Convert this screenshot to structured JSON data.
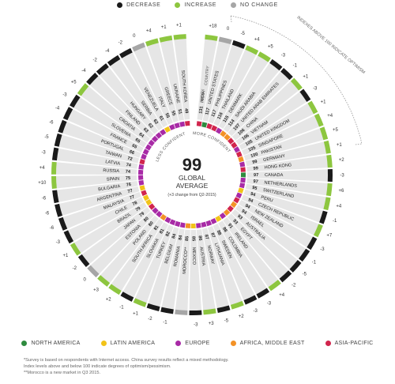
{
  "legend_top": [
    {
      "label": "DECREASE",
      "color": "#1a1a1a"
    },
    {
      "label": "INCREASE",
      "color": "#8dc63f"
    },
    {
      "label": "NO CHANGE",
      "color": "#a6a6a6"
    }
  ],
  "legend_bottom": [
    {
      "label": "NORTH AMERICA",
      "color": "#2e8b3e"
    },
    {
      "label": "LATIN AMERICA",
      "color": "#f2c318"
    },
    {
      "label": "EUROPE",
      "color": "#a82aa6"
    },
    {
      "label": "AFRICA, MIDDLE EAST",
      "color": "#f39226"
    },
    {
      "label": "ASIA-PACIFIC",
      "color": "#d1254d"
    }
  ],
  "center": {
    "value": "99",
    "label1": "GLOBAL",
    "label2": "AVERAGE",
    "note": "(+3 change from Q2-2015)"
  },
  "arc_labels": {
    "more": "MORE CONFIDENT",
    "less": "LESS CONFIDENT",
    "optimism": "INDEXES ABOVE 100 INDICATE OPTIMISM",
    "index_header": "INDEX",
    "country_header": "COUNTRY"
  },
  "footnotes": [
    "*Survey is based on respondents with Internet access. China survey results reflect a mixed methodology.",
    "Index levels above and below 100 indicate degrees of optimism/pessimism.",
    "**Morocco is a new market in Q3 2015."
  ],
  "chart_data": {
    "type": "radial-bar",
    "title": "",
    "global_average": 99,
    "global_change": "+3",
    "categories": [
      "India",
      "United States",
      "Philippines",
      "Thailand",
      "Denmark",
      "Saudi Arabia",
      "United Arab Emirates",
      "China",
      "Vietnam",
      "United Kingdom",
      "Singapore",
      "Pakistan",
      "Germany",
      "Hong Kong",
      "Canada",
      "Netherlands",
      "Switzerland",
      "Peru",
      "Czech Republic",
      "New Zealand",
      "Israel",
      "Australia",
      "Egypt",
      "Ireland",
      "Colombia",
      "Sweden",
      "Lithuania",
      "Norway",
      "Austria",
      "Mexico",
      "Morocco**",
      "Romania",
      "Belgium",
      "Turkey",
      "Slovakia",
      "South Africa",
      "Poland",
      "Estonia",
      "Japan",
      "Brazil",
      "Chile",
      "Malaysia",
      "Argentina",
      "Bulgaria",
      "Spain",
      "Russia",
      "Latvia",
      "Taiwan",
      "Portugal",
      "France",
      "Slovenia",
      "Croatia",
      "Finland",
      "Hungary",
      "Serbia",
      "Venezuela",
      "Italy",
      "Greece",
      "Ukraine",
      "South Korea"
    ],
    "index": [
      131,
      117,
      117,
      116,
      115,
      114,
      107,
      106,
      106,
      105,
      105,
      100,
      99,
      99,
      97,
      97,
      95,
      94,
      94,
      94,
      94,
      93,
      93,
      91,
      88,
      88,
      87,
      87,
      86,
      85,
      85,
      84,
      84,
      82,
      81,
      81,
      80,
      80,
      79,
      79,
      78,
      77,
      77,
      76,
      75,
      74,
      74,
      72,
      66,
      65,
      65,
      64,
      63,
      62,
      62,
      61,
      55,
      55,
      51,
      49
    ],
    "change": [
      "+18",
      "0",
      "-5",
      "+4",
      "+5",
      "-3",
      "-1",
      "+1",
      "-3",
      "+1",
      "+4",
      "+5",
      "+1",
      "+2",
      "-3",
      "+6",
      "+4",
      "-1",
      "+7",
      "-3",
      "-1",
      "-5",
      "-2",
      "+4",
      "-3",
      "-3",
      "+2",
      "-5",
      "+3",
      "-3",
      "",
      "-1",
      "-2",
      "+1",
      "-1",
      "+2",
      "+3",
      "0",
      "-2",
      "+1",
      "-3",
      "-6",
      "-6",
      "-6",
      "+10",
      "+4",
      "-3",
      "-5",
      "-6",
      "-4",
      "-3",
      "+5",
      "-4",
      "-2",
      "-4",
      "-2",
      "0",
      "+4",
      "+1",
      "+1"
    ],
    "region": [
      "asia-pacific",
      "north-america",
      "asia-pacific",
      "asia-pacific",
      "europe",
      "africa-middle-east",
      "africa-middle-east",
      "asia-pacific",
      "asia-pacific",
      "europe",
      "asia-pacific",
      "africa-middle-east",
      "europe",
      "asia-pacific",
      "north-america",
      "europe",
      "europe",
      "latin-america",
      "europe",
      "asia-pacific",
      "africa-middle-east",
      "asia-pacific",
      "africa-middle-east",
      "europe",
      "latin-america",
      "europe",
      "europe",
      "europe",
      "europe",
      "latin-america",
      "africa-middle-east",
      "europe",
      "europe",
      "europe",
      "europe",
      "africa-middle-east",
      "europe",
      "europe",
      "asia-pacific",
      "latin-america",
      "latin-america",
      "asia-pacific",
      "latin-america",
      "europe",
      "europe",
      "europe",
      "europe",
      "asia-pacific",
      "europe",
      "europe",
      "europe",
      "europe",
      "europe",
      "europe",
      "europe",
      "latin-america",
      "europe",
      "europe",
      "europe",
      "asia-pacific"
    ],
    "region_colors": {
      "north-america": "#2e8b3e",
      "latin-america": "#f2c318",
      "europe": "#a82aa6",
      "africa-middle-east": "#f39226",
      "asia-pacific": "#d1254d"
    },
    "status_colors": {
      "decrease": "#1a1a1a",
      "increase": "#8dc63f",
      "no-change": "#a6a6a6"
    }
  }
}
